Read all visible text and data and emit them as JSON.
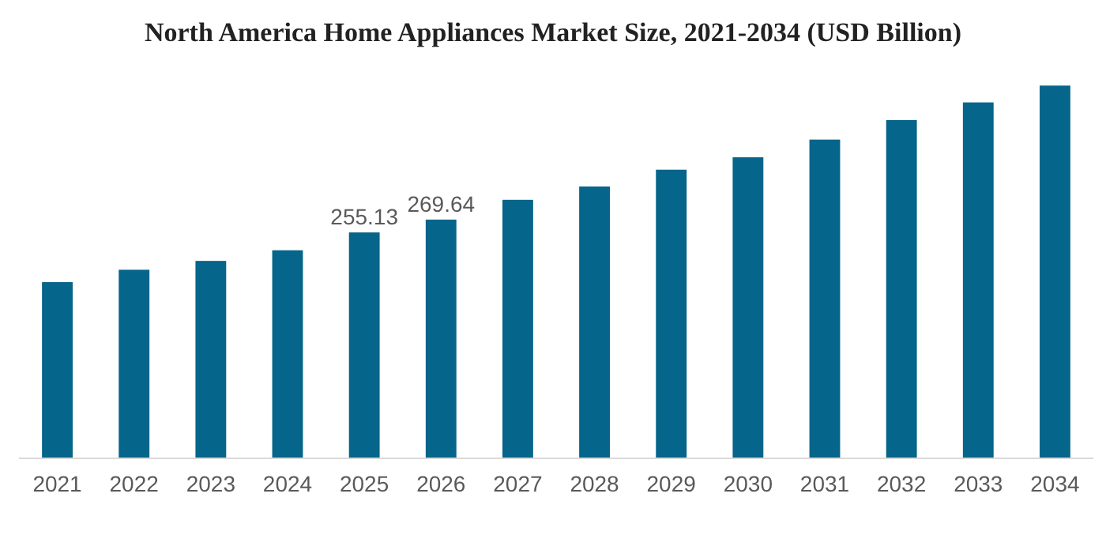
{
  "chart_data": {
    "type": "bar",
    "title": "North America Home Appliances Market Size, 2021-2034 (USD Billion)",
    "categories": [
      "2021",
      "2022",
      "2023",
      "2024",
      "2025",
      "2026",
      "2027",
      "2028",
      "2029",
      "2030",
      "2031",
      "2032",
      "2033",
      "2034"
    ],
    "values": [
      199,
      213,
      223,
      235,
      255.13,
      269.64,
      292,
      307,
      326,
      340,
      360,
      382,
      402,
      421
    ],
    "value_labels": [
      null,
      null,
      null,
      null,
      "255.13",
      "269.64",
      null,
      null,
      null,
      null,
      null,
      null,
      null,
      null
    ],
    "color": "#05658a",
    "grid": false
  }
}
